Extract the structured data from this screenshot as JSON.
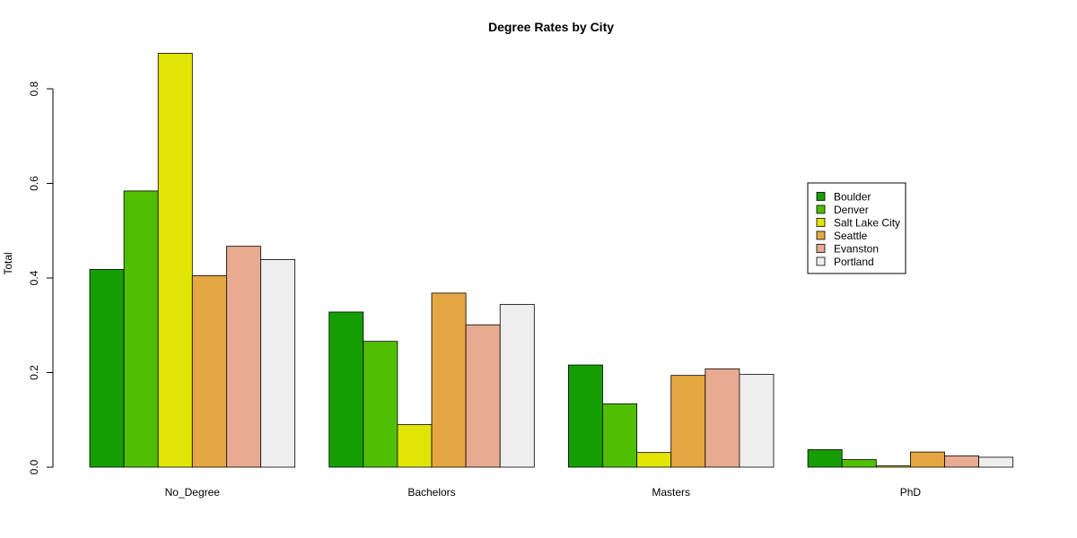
{
  "chart_data": {
    "type": "bar",
    "title": "Degree Rates by City",
    "xlabel": "",
    "ylabel": "Total",
    "ylim": [
      0,
      0.9
    ],
    "yticks": [
      "0.0",
      "0.2",
      "0.4",
      "0.6",
      "0.8"
    ],
    "grid": false,
    "legend_position": "right",
    "categories": [
      "No_Degree",
      "Bachelors",
      "Masters",
      "PhD"
    ],
    "series": [
      {
        "name": "Boulder",
        "color": "#159E04",
        "values": [
          0.418,
          0.328,
          0.216,
          0.037
        ]
      },
      {
        "name": "Denver",
        "color": "#50BF04",
        "values": [
          0.584,
          0.266,
          0.134,
          0.016
        ]
      },
      {
        "name": "Salt Lake City",
        "color": "#E1E504",
        "values": [
          0.875,
          0.09,
          0.031,
          0.003
        ]
      },
      {
        "name": "Seattle",
        "color": "#E4A741",
        "values": [
          0.405,
          0.368,
          0.194,
          0.032
        ]
      },
      {
        "name": "Evanston",
        "color": "#E8AB91",
        "values": [
          0.467,
          0.301,
          0.208,
          0.024
        ]
      },
      {
        "name": "Portland",
        "color": "#EEEEEE",
        "values": [
          0.439,
          0.344,
          0.196,
          0.021
        ]
      }
    ]
  }
}
